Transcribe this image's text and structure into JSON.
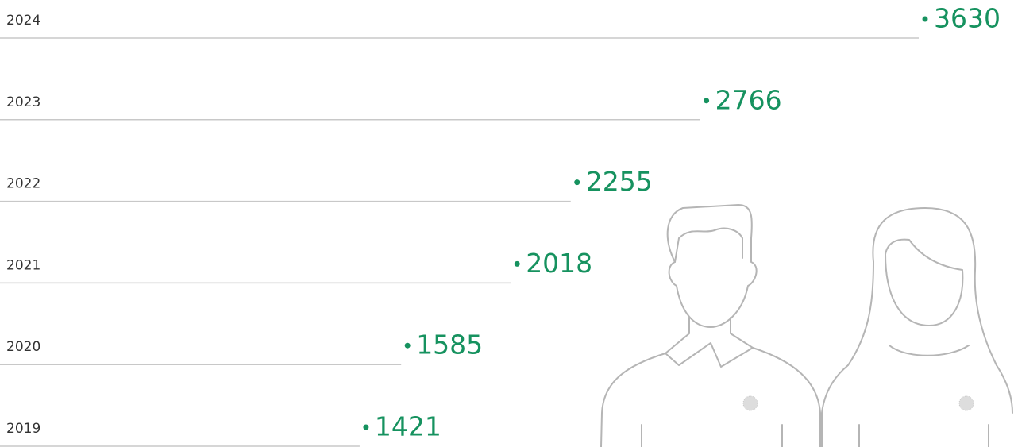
{
  "chart_data": {
    "type": "bar",
    "orientation": "horizontal",
    "categories": [
      "2024",
      "2023",
      "2022",
      "2021",
      "2020",
      "2019"
    ],
    "values": [
      3630,
      2766,
      2255,
      2018,
      1585,
      1421
    ],
    "color": "#16925f",
    "line_color": "#c8c8c8"
  }
}
